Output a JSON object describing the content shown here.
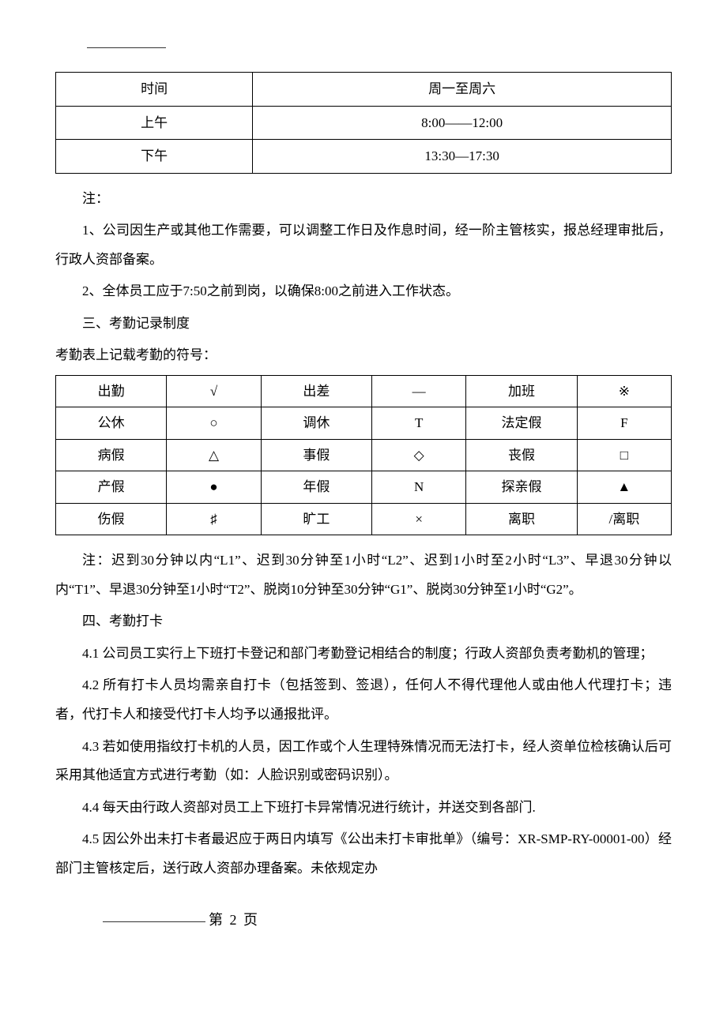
{
  "schedule_table": {
    "rows": [
      [
        "时间",
        "周一至周六"
      ],
      [
        "上午",
        "8:00——12:00"
      ],
      [
        "下午",
        "13:30—17:30"
      ]
    ],
    "border_color": "#000000",
    "font_size": 17
  },
  "notes_header": "注：",
  "note1": "1、公司因生产或其他工作需要，可以调整工作日及作息时间，经一阶主管核实，报总经理审批后，行政人资部备案。",
  "note2": "2、全体员工应于7:50之前到岗，以确保8:00之前进入工作状态。",
  "section3_title": "三、考勤记录制度",
  "symbols_intro": "考勤表上记载考勤的符号：",
  "symbol_table": {
    "rows": [
      [
        "出勤",
        "√",
        "出差",
        "—",
        "加班",
        "※"
      ],
      [
        "公休",
        "○",
        "调休",
        "T",
        "法定假",
        "F"
      ],
      [
        "病假",
        "△",
        "事假",
        "◇",
        "丧假",
        "□"
      ],
      [
        "产假",
        "●",
        "年假",
        "N",
        "探亲假",
        "▲"
      ],
      [
        "伤假",
        "♯",
        "旷工",
        "×",
        "离职",
        "/离职"
      ]
    ],
    "border_color": "#000000",
    "font_size": 17
  },
  "symbol_note": "注：迟到30分钟以内“L1”、迟到30分钟至1小时“L2”、迟到1小时至2小时“L3”、早退30分钟以内“T1”、早退30分钟至1小时“T2”、脱岗10分钟至30分钟“G1”、脱岗30分钟至1小时“G2”。",
  "section4_title": "四、考勤打卡",
  "p4_1": "4.1 公司员工实行上下班打卡登记和部门考勤登记相结合的制度；行政人资部负责考勤机的管理；",
  "p4_2": "4.2 所有打卡人员均需亲自打卡（包括签到、签退），任何人不得代理他人或由他人代理打卡；违者，代打卡人和接受代打卡人均予以通报批评。",
  "p4_3": "4.3 若如使用指纹打卡机的人员，因工作或个人生理特殊情况而无法打卡，经人资单位检核确认后可采用其他适宜方式进行考勤（如：人脸识别或密码识别）。",
  "p4_4": "4.4 每天由行政人资部对员工上下班打卡异常情况进行统计，并送交到各部门.",
  "p4_5": "4.5 因公外出未打卡者最迟应于两日内填写《公出未打卡审批单》（编号：XR-SMP-RY-00001-00）经部门主管核定后，送行政人资部办理备案。未依规定办",
  "footer": "第 2 页",
  "colors": {
    "text": "#000000",
    "background": "#ffffff",
    "rule": "#333333"
  }
}
